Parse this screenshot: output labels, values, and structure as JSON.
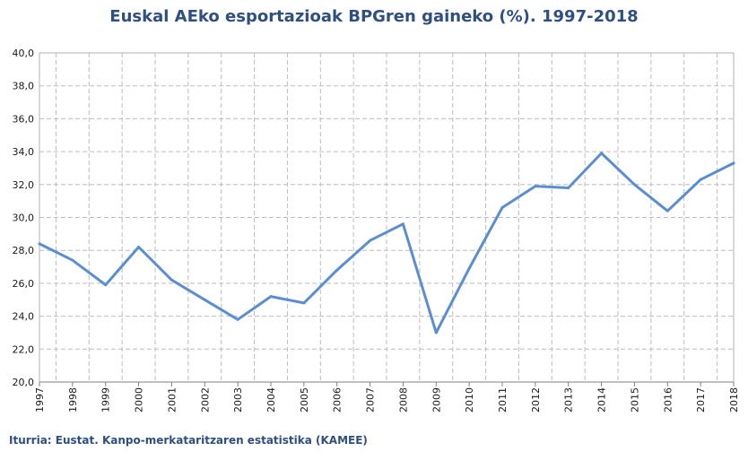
{
  "chart_data": {
    "type": "line",
    "title": "Euskal AEko esportazioak  BPGren gaineko (%). 1997-2018",
    "xlabel": "",
    "ylabel": "",
    "categories": [
      "1997",
      "1998",
      "1999",
      "2000",
      "2001",
      "2002",
      "2003",
      "2004",
      "2005",
      "2006",
      "2007",
      "2008",
      "2009",
      "2010",
      "2011",
      "2012",
      "2013",
      "2014",
      "2015",
      "2016",
      "2017",
      "2018"
    ],
    "series": [
      {
        "values": [
          28.4,
          27.4,
          25.9,
          28.2,
          26.2,
          25.0,
          23.8,
          25.2,
          24.8,
          26.8,
          28.6,
          29.6,
          23.0,
          26.9,
          30.6,
          31.9,
          31.8,
          33.9,
          32.0,
          30.4,
          32.3,
          33.3
        ]
      }
    ],
    "ylim": [
      20,
      40
    ],
    "yticks": [
      "20,0",
      "22,0",
      "24,0",
      "26,0",
      "28,0",
      "30,0",
      "32,0",
      "34,0",
      "36,0",
      "38,0",
      "40,0"
    ],
    "grid": true,
    "line_color": "#5b8ed0",
    "source": "Iturria: Eustat. Kanpo-merkataritzaren estatistika (KAMEE)"
  }
}
